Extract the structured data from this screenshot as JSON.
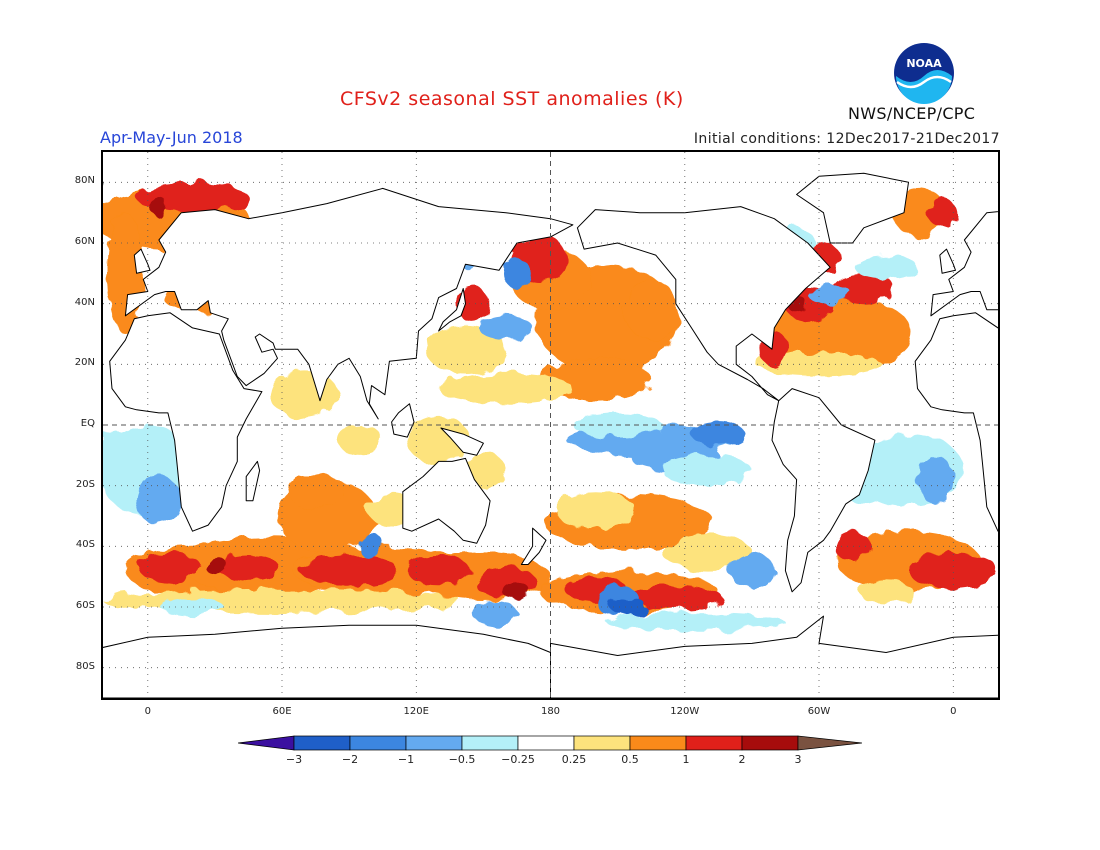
{
  "header": {
    "title": "CFSv2 seasonal SST anomalies (K)",
    "period": "Apr-May-Jun 2018",
    "initial_conditions": "Initial conditions: 12Dec2017-21Dec2017",
    "agency": "NWS/NCEP/CPC",
    "logo_text": "NOAA"
  },
  "colors": {
    "title": "#e0201a",
    "period": "#2846d8",
    "land_outline": "#000000",
    "ocean_neutral": "#ffffff"
  },
  "map": {
    "projection": "cylindrical",
    "lon_range": [
      -20,
      380
    ],
    "lat_range": [
      -90,
      90
    ],
    "lat_labels": [
      "80N",
      "60N",
      "40N",
      "20N",
      "EQ",
      "20S",
      "40S",
      "60S",
      "80S"
    ],
    "lat_values": [
      80,
      60,
      40,
      20,
      0,
      -20,
      -40,
      -60,
      -80
    ],
    "lon_labels": [
      "0",
      "60E",
      "120E",
      "180",
      "120W",
      "60W",
      "0"
    ],
    "lon_values": [
      0,
      60,
      120,
      180,
      240,
      300,
      360
    ]
  },
  "colorbar": {
    "labels": [
      "-3",
      "-2",
      "-1",
      "-0.5",
      "-0.25",
      "0.25",
      "0.5",
      "1",
      "2",
      "3"
    ],
    "colors": [
      "#3b10a0",
      "#1f5fc8",
      "#3c86e0",
      "#64aaf0",
      "#b4f0f8",
      "#ffffff",
      "#fde37d",
      "#fa8a1a",
      "#e0201a",
      "#a60c0c",
      "#7a5240"
    ]
  }
}
